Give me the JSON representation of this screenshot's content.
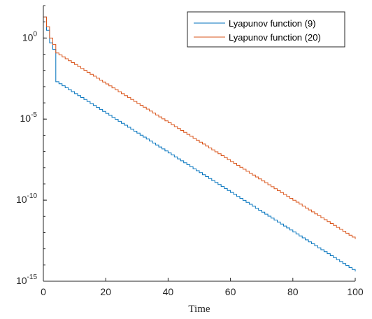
{
  "chart_data": {
    "type": "line",
    "title": "",
    "xlabel": "Time",
    "ylabel": "",
    "xlim": [
      0,
      100
    ],
    "ylim": [
      1e-15,
      100
    ],
    "yscale": "log",
    "grid": false,
    "legend_position": "top-right",
    "x_ticks": [
      0,
      20,
      40,
      60,
      80,
      100
    ],
    "x_tick_labels": [
      "0",
      "20",
      "40",
      "60",
      "80",
      "100"
    ],
    "y_ticks": [
      1e-15,
      1e-10,
      1e-05,
      1
    ],
    "y_tick_labels": [
      {
        "base": "10",
        "exp": "-15"
      },
      {
        "base": "10",
        "exp": "-10"
      },
      {
        "base": "10",
        "exp": "-5"
      },
      {
        "base": "10",
        "exp": "0"
      }
    ],
    "series": [
      {
        "name": "Lyapunov function (9)",
        "color": "#0072BD",
        "style": "step",
        "x": [
          0,
          1,
          2,
          3,
          4,
          100
        ],
        "y": [
          20,
          3,
          0.5,
          0.2,
          0.002,
          4e-15
        ]
      },
      {
        "name": "Lyapunov function (20)",
        "color": "#D95319",
        "style": "step",
        "x": [
          0,
          1,
          2,
          3,
          4,
          100
        ],
        "y": [
          20,
          5,
          1,
          0.4,
          0.12,
          4e-13
        ]
      }
    ]
  }
}
